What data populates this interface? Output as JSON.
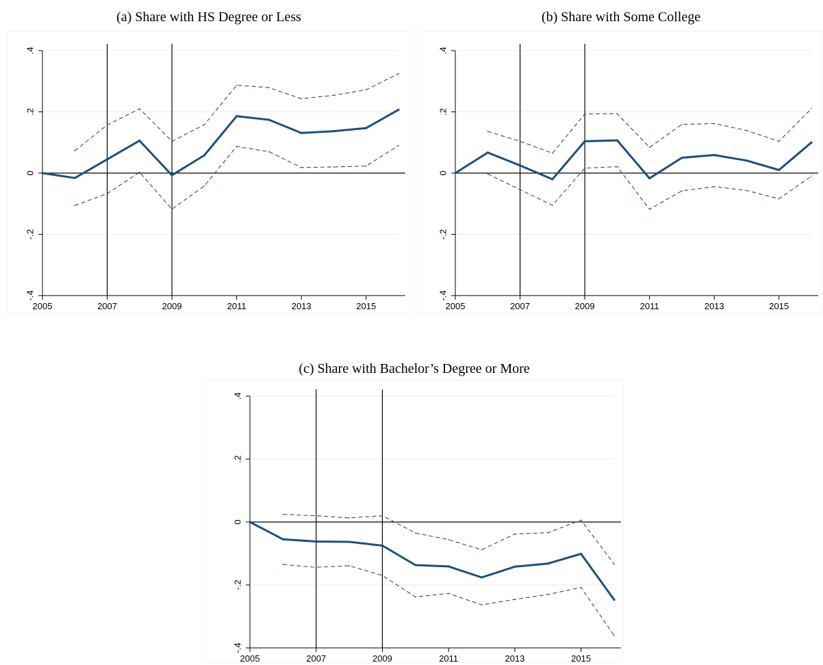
{
  "chart_data": [
    {
      "type": "line",
      "title": "(a) Share with HS Degree or Less",
      "xlabel": "",
      "ylabel": "",
      "x": [
        2005,
        2006,
        2007,
        2008,
        2009,
        2010,
        2011,
        2012,
        2013,
        2014,
        2015,
        2016
      ],
      "xlim": [
        2005,
        2016
      ],
      "ylim": [
        -0.4,
        0.4
      ],
      "x_ticks": [
        2005,
        2007,
        2009,
        2011,
        2013,
        2015
      ],
      "x_tick_labels": [
        "2005",
        "2007",
        "2009",
        "2011",
        "2013",
        "2015"
      ],
      "y_ticks": [
        -0.4,
        -0.2,
        0,
        0.2,
        0.4
      ],
      "y_tick_labels": [
        "-.4",
        "-.2",
        "0",
        ".2",
        ".4"
      ],
      "vlines": [
        2007,
        2009
      ],
      "hline": 0,
      "grid": true,
      "series": [
        {
          "role": "estimate",
          "values": [
            0,
            -0.016,
            0.045,
            0.106,
            -0.007,
            0.058,
            0.186,
            0.174,
            0.131,
            0.137,
            0.147,
            0.207
          ]
        },
        {
          "role": "upper",
          "values": [
            null,
            0.073,
            0.157,
            0.21,
            0.104,
            0.158,
            0.287,
            0.279,
            0.243,
            0.254,
            0.272,
            0.325
          ]
        },
        {
          "role": "lower",
          "values": [
            null,
            -0.106,
            -0.067,
            0.003,
            -0.118,
            -0.042,
            0.087,
            0.07,
            0.018,
            0.02,
            0.023,
            0.09
          ]
        }
      ],
      "colors": {
        "line": "#1f4e79",
        "axis": "#000000",
        "grid": "#eaeaea"
      }
    },
    {
      "type": "line",
      "title": "(b) Share with Some College",
      "xlabel": "",
      "ylabel": "",
      "x": [
        2005,
        2006,
        2007,
        2008,
        2009,
        2010,
        2011,
        2012,
        2013,
        2014,
        2015,
        2016
      ],
      "xlim": [
        2005,
        2016
      ],
      "ylim": [
        -0.4,
        0.4
      ],
      "x_ticks": [
        2005,
        2007,
        2009,
        2011,
        2013,
        2015
      ],
      "x_tick_labels": [
        "2005",
        "2007",
        "2009",
        "2011",
        "2013",
        "2015"
      ],
      "y_ticks": [
        -0.4,
        -0.2,
        0,
        0.2,
        0.4
      ],
      "y_tick_labels": [
        "-.4",
        "-.2",
        "0",
        ".2",
        ".4"
      ],
      "vlines": [
        2007,
        2009
      ],
      "hline": 0,
      "grid": true,
      "series": [
        {
          "role": "estimate",
          "values": [
            0,
            0.067,
            0.025,
            -0.02,
            0.104,
            0.107,
            -0.017,
            0.05,
            0.059,
            0.041,
            0.01,
            0.1
          ]
        },
        {
          "role": "upper",
          "values": [
            null,
            0.136,
            0.104,
            0.065,
            0.193,
            0.194,
            0.084,
            0.159,
            0.162,
            0.139,
            0.104,
            0.21
          ]
        },
        {
          "role": "lower",
          "values": [
            null,
            -0.003,
            -0.054,
            -0.105,
            0.016,
            0.021,
            -0.118,
            -0.058,
            -0.044,
            -0.057,
            -0.084,
            -0.01
          ]
        }
      ],
      "colors": {
        "line": "#1f4e79",
        "axis": "#000000",
        "grid": "#eaeaea"
      }
    },
    {
      "type": "line",
      "title": "(c) Share with Bachelor’s Degree or More",
      "xlabel": "",
      "ylabel": "",
      "x": [
        2005,
        2006,
        2007,
        2008,
        2009,
        2010,
        2011,
        2012,
        2013,
        2014,
        2015,
        2016
      ],
      "xlim": [
        2005,
        2016
      ],
      "ylim": [
        -0.4,
        0.4
      ],
      "x_ticks": [
        2005,
        2007,
        2009,
        2011,
        2013,
        2015
      ],
      "x_tick_labels": [
        "2005",
        "2007",
        "2009",
        "2011",
        "2013",
        "2015"
      ],
      "y_ticks": [
        -0.4,
        -0.2,
        0,
        0.2,
        0.4
      ],
      "y_tick_labels": [
        "-.4",
        "-.2",
        "0",
        ".2",
        ".4"
      ],
      "vlines": [
        2007,
        2009
      ],
      "hline": 0,
      "grid": true,
      "series": [
        {
          "role": "estimate",
          "values": [
            0,
            -0.055,
            -0.062,
            -0.063,
            -0.075,
            -0.137,
            -0.141,
            -0.176,
            -0.142,
            -0.132,
            -0.101,
            -0.247
          ]
        },
        {
          "role": "upper",
          "values": [
            null,
            0.024,
            0.02,
            0.013,
            0.02,
            -0.035,
            -0.056,
            -0.088,
            -0.038,
            -0.034,
            0.006,
            -0.134
          ]
        },
        {
          "role": "lower",
          "values": [
            null,
            -0.135,
            -0.144,
            -0.139,
            -0.17,
            -0.238,
            -0.227,
            -0.263,
            -0.246,
            -0.23,
            -0.208,
            -0.361
          ]
        }
      ],
      "colors": {
        "line": "#1f4e79",
        "axis": "#000000",
        "grid": "#eaeaea"
      }
    }
  ]
}
